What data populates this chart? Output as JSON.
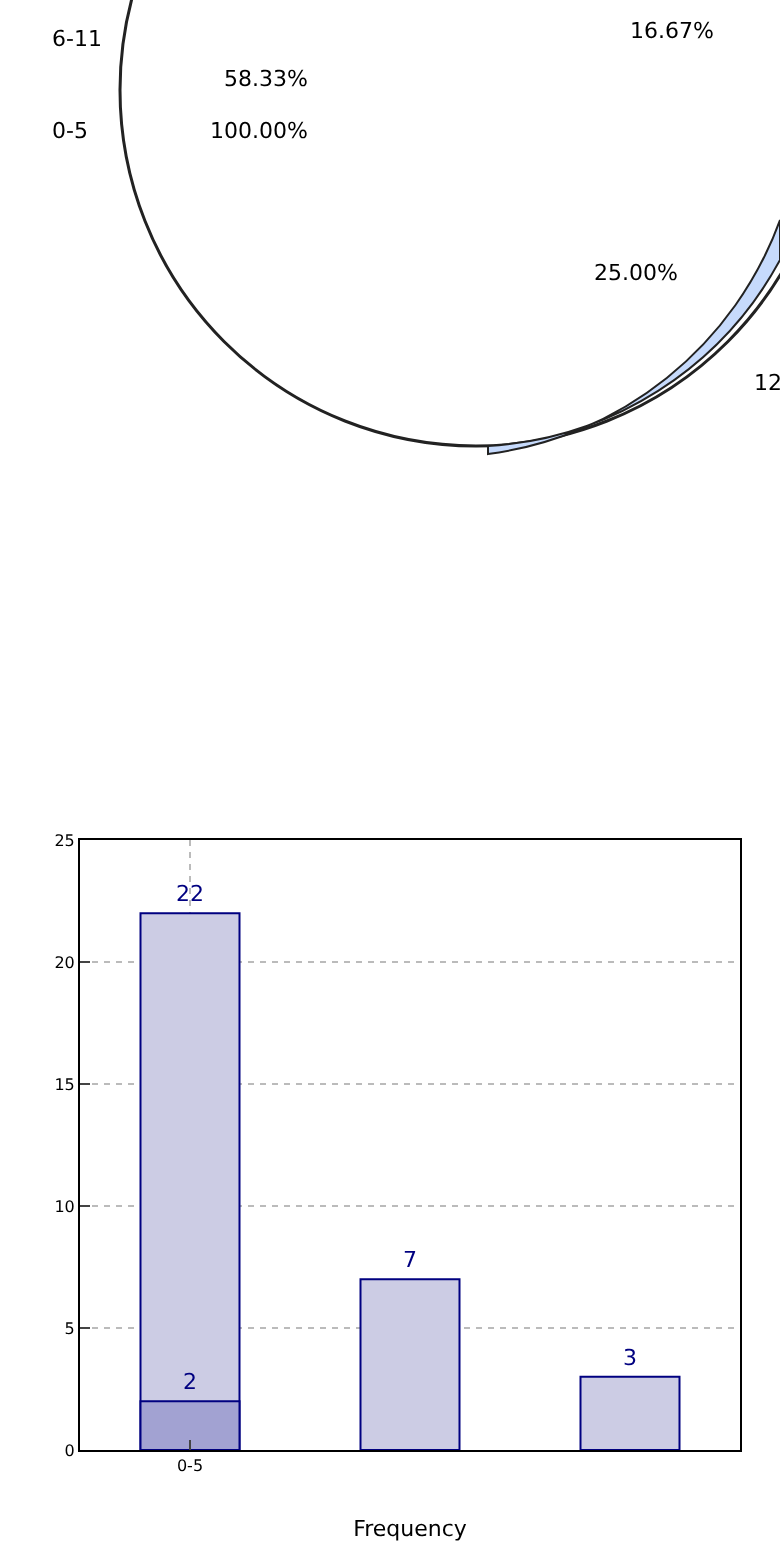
{
  "chart_data": [
    {
      "type": "other",
      "annotations": [
        "6-11",
        "58.33%",
        "0-5",
        "100.00%",
        "16.67%",
        "25.00%",
        "12"
      ]
    },
    {
      "type": "bar",
      "categories": [
        "0-5",
        null,
        null
      ],
      "xlabel": "Frequency",
      "series": [
        {
          "color": "#ccccE4",
          "values": [
            22,
            7,
            3
          ]
        },
        {
          "color": "#a2a2d2",
          "values": [
            2,
            null,
            null
          ]
        }
      ],
      "ylim": [
        0,
        25
      ],
      "yticks": [
        0,
        5,
        10,
        15,
        20,
        25
      ],
      "grid": true,
      "data_labels": true
    }
  ]
}
